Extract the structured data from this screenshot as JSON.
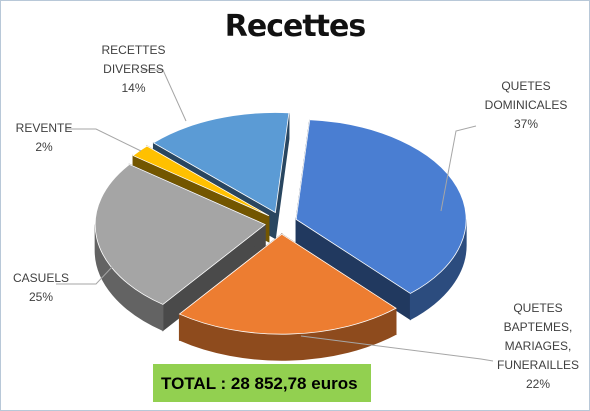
{
  "chart_data": {
    "type": "pie3d",
    "title": "Recettes",
    "categories": [
      "QUETES DOMINICALES",
      "QUETES BAPTEMES, MARIAGES, FUNERAILLES",
      "CASUELS",
      "REVENTE",
      "RECETTES DIVERSES"
    ],
    "values": [
      37,
      22,
      25,
      2,
      14
    ],
    "value_labels": [
      "37%",
      "22%",
      "25%",
      "2%",
      "14%"
    ],
    "colors": [
      "#4a7ed2",
      "#ed7d31",
      "#a5a5a5",
      "#ffc000",
      "#5b9bd5"
    ],
    "annotation": "TOTAL : 28 852,78 euros"
  }
}
